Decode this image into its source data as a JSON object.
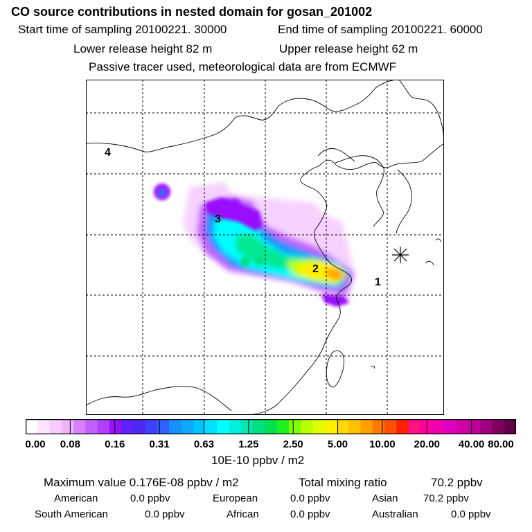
{
  "header": {
    "title": "CO  source contributions in nested domain for gosan_201002",
    "start_time": "Start time of sampling 20100221. 30000",
    "end_time": "End time of sampling 20100221. 60000",
    "lower_release": "Lower release height   82 m",
    "upper_release": "Upper release height   62 m",
    "tracer_note": "Passive tracer used, meteorological data are from ECMWF"
  },
  "map": {
    "region_labels": [
      "1",
      "2",
      "3",
      "4"
    ],
    "receptor_marker": "receptor-star-icon"
  },
  "colorbar": {
    "tick_labels": [
      "0.00",
      "0.08",
      "0.16",
      "0.31",
      "0.63",
      "1.25",
      "2.50",
      "5.00",
      "10.00",
      "20.00",
      "40.00",
      "80.00"
    ],
    "colors": [
      "#ffffff",
      "#fbe6ff",
      "#f6ccff",
      "#f0b3ff",
      "#d880ff",
      "#c460ff",
      "#b040ff",
      "#9a10ff",
      "#6020ff",
      "#5028f0",
      "#3d40ff",
      "#3060ff",
      "#1890ff",
      "#10a8ff",
      "#00c4ff",
      "#00e0ff",
      "#00ffff",
      "#00f0e0",
      "#00e8b0",
      "#00e080",
      "#00e050",
      "#20f020",
      "#80ff00",
      "#b8ff00",
      "#e0ff00",
      "#fff000",
      "#ffd800",
      "#ffc000",
      "#ffa000",
      "#ff7800",
      "#ff5000",
      "#ff2000",
      "#ff1080",
      "#ff00a0",
      "#f000b0",
      "#e000c0",
      "#d000a8",
      "#c00098",
      "#a00080",
      "#800060",
      "#600048"
    ],
    "unit": "10E-10 ppbv / m2"
  },
  "summary": {
    "max_value": "Maximum value  0.176E-08 ppbv / m2",
    "total_label": "Total mixing ratio",
    "total_value": "70.2 ppbv",
    "regions": [
      {
        "name": "American",
        "value": "0.0 ppbv"
      },
      {
        "name": "European",
        "value": "0.0 ppbv"
      },
      {
        "name": "Asian",
        "value": "70.2 ppbv"
      },
      {
        "name": "South American",
        "value": "0.0 ppbv"
      },
      {
        "name": "African",
        "value": "0.0 ppbv"
      },
      {
        "name": "Australian",
        "value": "0.0 ppbv"
      }
    ]
  }
}
